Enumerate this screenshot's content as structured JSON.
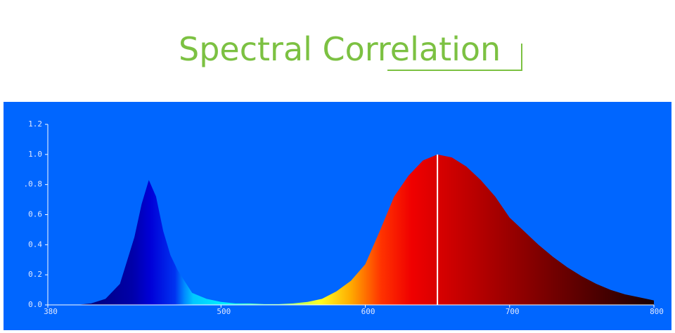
{
  "chart_data": {
    "type": "area",
    "title": "Spectral Correlation",
    "x": [
      380,
      390,
      400,
      410,
      420,
      430,
      440,
      445,
      450,
      455,
      460,
      465,
      470,
      480,
      490,
      500,
      510,
      520,
      530,
      540,
      550,
      560,
      570,
      580,
      590,
      600,
      610,
      620,
      630,
      640,
      650,
      660,
      670,
      680,
      690,
      700,
      710,
      720,
      730,
      740,
      750,
      760,
      770,
      780,
      790,
      800
    ],
    "values": [
      0,
      0,
      0,
      0.01,
      0.04,
      0.14,
      0.45,
      0.67,
      0.83,
      0.72,
      0.49,
      0.33,
      0.23,
      0.08,
      0.04,
      0.02,
      0.01,
      0.01,
      0.005,
      0.005,
      0.01,
      0.02,
      0.04,
      0.09,
      0.16,
      0.27,
      0.49,
      0.72,
      0.86,
      0.96,
      1.0,
      0.98,
      0.92,
      0.83,
      0.72,
      0.58,
      0.49,
      0.4,
      0.32,
      0.25,
      0.19,
      0.14,
      0.1,
      0.07,
      0.05,
      0.03
    ],
    "xlim": [
      380,
      800
    ],
    "ylim": [
      0,
      1.2
    ],
    "xticks": [
      380,
      500,
      600,
      700,
      800
    ],
    "yticks": [
      {
        "value": 0,
        "label": "0.0"
      },
      {
        "value": 0.2,
        "label": "0.2"
      },
      {
        "value": 0.4,
        "label": "0.4"
      },
      {
        "value": 0.6,
        "label": "0.6"
      },
      {
        "value": 0.8,
        "label": ".0.8"
      },
      {
        "value": 1.0,
        "label": "1.0"
      },
      {
        "value": 1.2,
        "label": "1.2"
      }
    ]
  }
}
